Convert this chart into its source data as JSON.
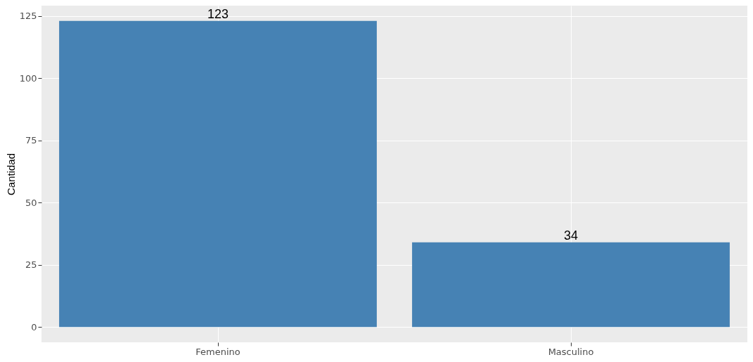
{
  "chart_data": {
    "type": "bar",
    "ylabel": "Cantidad",
    "categories": [
      "Femenino",
      "Masculino"
    ],
    "values": [
      123,
      34
    ],
    "color": "#4682b4",
    "ylim": [
      -6.15,
      129.15
    ],
    "yticks": [
      0,
      25,
      50,
      75,
      100,
      125
    ],
    "grid": true,
    "data_labels": true
  }
}
